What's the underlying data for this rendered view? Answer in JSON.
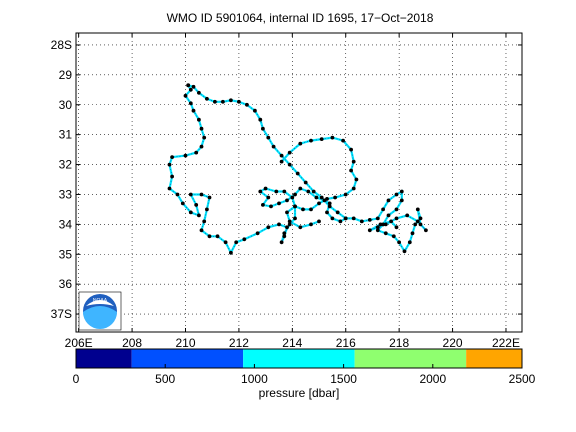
{
  "chart_data": {
    "type": "scatter",
    "title": "WMO ID 5901064, internal ID 1695, 17−Oct−2018",
    "x_ticks": [
      "206E",
      "208",
      "210",
      "212",
      "214",
      "216",
      "218",
      "220",
      "222E"
    ],
    "x_tick_values": [
      206,
      208,
      210,
      212,
      214,
      216,
      218,
      220,
      222
    ],
    "y_ticks": [
      "28S",
      "29",
      "30",
      "31",
      "32",
      "33",
      "34",
      "35",
      "36",
      "37S"
    ],
    "y_tick_values": [
      28,
      29,
      30,
      31,
      32,
      33,
      34,
      35,
      36,
      37
    ],
    "xlim": [
      205.9,
      222.6
    ],
    "ylim": [
      27.6,
      37.6
    ],
    "grid": true,
    "track_color": "#00e8ff",
    "point_color": "#000000",
    "track": [
      [
        210.1,
        29.35
      ],
      [
        210.2,
        29.5
      ],
      [
        210.0,
        29.7
      ],
      [
        210.2,
        29.95
      ],
      [
        210.3,
        30.2
      ],
      [
        210.5,
        30.5
      ],
      [
        210.6,
        30.8
      ],
      [
        210.7,
        31.1
      ],
      [
        210.6,
        31.4
      ],
      [
        210.4,
        31.6
      ],
      [
        210.0,
        31.7
      ],
      [
        209.5,
        31.75
      ],
      [
        209.4,
        32.0
      ],
      [
        209.5,
        32.4
      ],
      [
        209.4,
        32.8
      ],
      [
        209.7,
        33.0
      ],
      [
        209.9,
        33.3
      ],
      [
        210.2,
        33.6
      ],
      [
        210.5,
        33.7
      ],
      [
        210.4,
        33.35
      ],
      [
        210.2,
        33.0
      ],
      [
        210.6,
        33.0
      ],
      [
        210.9,
        33.1
      ],
      [
        210.8,
        33.5
      ],
      [
        210.7,
        33.9
      ],
      [
        210.6,
        34.2
      ],
      [
        210.9,
        34.4
      ],
      [
        211.2,
        34.4
      ],
      [
        211.5,
        34.6
      ],
      [
        211.7,
        34.95
      ],
      [
        211.9,
        34.6
      ],
      [
        212.2,
        34.5
      ],
      [
        212.7,
        34.3
      ],
      [
        213.1,
        34.1
      ],
      [
        213.5,
        34.0
      ],
      [
        213.8,
        34.1
      ],
      [
        213.7,
        34.4
      ],
      [
        213.6,
        34.6
      ],
      [
        213.7,
        34.3
      ],
      [
        213.9,
        34.0
      ],
      [
        214.1,
        33.8
      ],
      [
        214.1,
        33.4
      ],
      [
        214.0,
        33.1
      ],
      [
        213.7,
        32.9
      ],
      [
        213.4,
        32.9
      ],
      [
        213.0,
        32.8
      ],
      [
        212.8,
        32.9
      ],
      [
        213.1,
        33.1
      ],
      [
        212.9,
        33.35
      ],
      [
        213.2,
        33.4
      ],
      [
        213.5,
        33.3
      ],
      [
        213.8,
        33.2
      ],
      [
        214.1,
        33.0
      ],
      [
        214.3,
        32.8
      ],
      [
        214.6,
        32.9
      ],
      [
        214.9,
        33.1
      ],
      [
        215.2,
        33.2
      ],
      [
        215.4,
        33.3
      ],
      [
        215.3,
        33.6
      ],
      [
        215.5,
        33.8
      ],
      [
        215.8,
        33.9
      ],
      [
        216.0,
        33.8
      ],
      [
        215.7,
        33.6
      ],
      [
        215.4,
        33.4
      ],
      [
        215.1,
        33.1
      ],
      [
        214.8,
        32.9
      ],
      [
        214.5,
        32.6
      ],
      [
        214.2,
        32.3
      ],
      [
        213.9,
        32.0
      ],
      [
        213.6,
        31.7
      ],
      [
        213.3,
        31.4
      ],
      [
        213.1,
        31.1
      ],
      [
        212.9,
        30.8
      ],
      [
        212.8,
        30.5
      ],
      [
        212.6,
        30.2
      ],
      [
        212.3,
        30.0
      ],
      [
        212.0,
        29.9
      ],
      [
        211.7,
        29.85
      ],
      [
        211.4,
        29.9
      ],
      [
        211.1,
        29.9
      ],
      [
        210.8,
        29.8
      ],
      [
        210.5,
        29.6
      ],
      [
        210.3,
        29.4
      ],
      [
        210.1,
        29.35
      ]
    ],
    "track2": [
      [
        213.6,
        31.9
      ],
      [
        213.9,
        31.6
      ],
      [
        214.3,
        31.3
      ],
      [
        214.7,
        31.2
      ],
      [
        215.1,
        31.15
      ],
      [
        215.5,
        31.1
      ],
      [
        215.9,
        31.2
      ],
      [
        216.2,
        31.5
      ],
      [
        216.3,
        31.9
      ],
      [
        216.2,
        32.2
      ],
      [
        216.4,
        32.5
      ],
      [
        216.3,
        32.8
      ],
      [
        216.0,
        33.0
      ],
      [
        215.6,
        33.1
      ],
      [
        215.3,
        33.15
      ],
      [
        215.0,
        33.3
      ],
      [
        214.7,
        33.5
      ],
      [
        214.4,
        33.5
      ],
      [
        214.1,
        33.4
      ],
      [
        213.8,
        33.6
      ],
      [
        213.9,
        33.9
      ],
      [
        214.3,
        34.1
      ],
      [
        214.7,
        34.0
      ],
      [
        215.0,
        33.9
      ]
    ],
    "track3": [
      [
        216.0,
        33.8
      ],
      [
        216.3,
        33.8
      ],
      [
        216.6,
        33.9
      ],
      [
        216.9,
        33.85
      ],
      [
        217.2,
        33.8
      ],
      [
        217.4,
        33.5
      ],
      [
        217.6,
        33.2
      ],
      [
        217.9,
        33.0
      ],
      [
        218.1,
        32.9
      ],
      [
        218.1,
        33.2
      ],
      [
        217.9,
        33.5
      ],
      [
        217.6,
        33.7
      ],
      [
        217.4,
        34.0
      ],
      [
        217.2,
        34.2
      ],
      [
        217.5,
        34.3
      ],
      [
        217.8,
        34.4
      ],
      [
        218.0,
        34.6
      ],
      [
        218.2,
        34.9
      ],
      [
        218.4,
        34.6
      ],
      [
        218.5,
        34.3
      ],
      [
        218.6,
        34.0
      ],
      [
        218.8,
        33.8
      ],
      [
        218.7,
        33.5
      ],
      [
        218.8,
        34.0
      ],
      [
        219.0,
        34.2
      ],
      [
        218.7,
        33.9
      ],
      [
        218.3,
        33.7
      ],
      [
        217.9,
        33.8
      ],
      [
        217.5,
        34.0
      ],
      [
        217.2,
        34.1
      ],
      [
        216.9,
        34.2
      ],
      [
        217.3,
        34.0
      ],
      [
        217.7,
        33.9
      ],
      [
        217.9,
        34.1
      ]
    ]
  },
  "colorbar": {
    "label": "pressure [dbar]",
    "ticks": [
      "0",
      "500",
      "1000",
      "1500",
      "2000",
      "2500"
    ],
    "tick_values": [
      0,
      500,
      1000,
      1500,
      2000,
      2500
    ],
    "range": [
      0,
      2500
    ],
    "segments": [
      {
        "from": 0,
        "to": 312,
        "color": "#00008f"
      },
      {
        "from": 312,
        "to": 937,
        "color": "#0050ff"
      },
      {
        "from": 937,
        "to": 1562,
        "color": "#00ffff"
      },
      {
        "from": 1562,
        "to": 2187,
        "color": "#8fff6f"
      },
      {
        "from": 2187,
        "to": 2500,
        "color": "#ffa500"
      }
    ]
  },
  "logo": {
    "text": "NOAA"
  }
}
